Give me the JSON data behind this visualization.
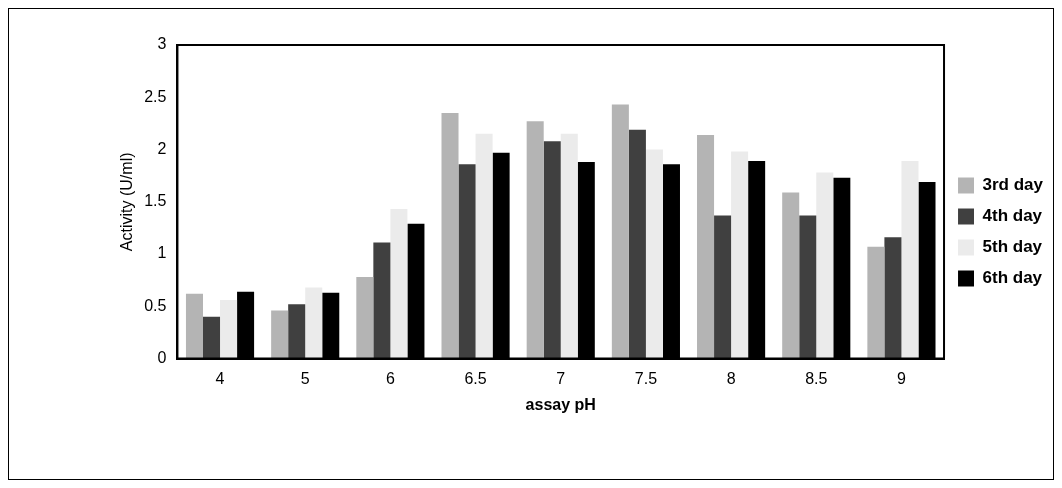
{
  "chart_data": {
    "type": "bar",
    "xlabel": "assay pH",
    "ylabel": "Activity (U/ml)",
    "categories": [
      "4",
      "5",
      "6",
      "6.5",
      "7",
      "7.5",
      "8",
      "8.5",
      "9"
    ],
    "series": [
      {
        "name": "3rd day",
        "color": "#b4b4b4",
        "values": [
          0.62,
          0.46,
          0.78,
          2.35,
          2.27,
          2.43,
          2.14,
          1.59,
          1.07
        ]
      },
      {
        "name": "4th day",
        "color": "#404040",
        "values": [
          0.4,
          0.52,
          1.11,
          1.86,
          2.08,
          2.19,
          1.37,
          1.37,
          1.16
        ]
      },
      {
        "name": "5th day",
        "color": "#ebebeb",
        "values": [
          0.56,
          0.68,
          1.43,
          2.15,
          2.15,
          2.0,
          1.98,
          1.78,
          1.89
        ]
      },
      {
        "name": "6th day",
        "color": "#000000",
        "values": [
          0.64,
          0.63,
          1.29,
          1.97,
          1.88,
          1.86,
          1.89,
          1.73,
          1.69
        ]
      }
    ],
    "ylim": [
      0,
      3
    ],
    "yticks": [
      0,
      0.5,
      1,
      1.5,
      2,
      2.5,
      3
    ],
    "grid": false,
    "legend": "right"
  }
}
